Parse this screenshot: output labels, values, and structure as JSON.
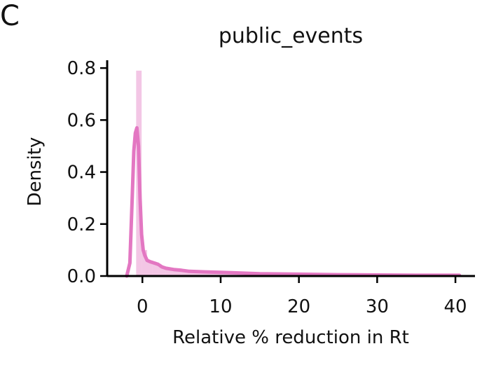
{
  "panel_label": "C",
  "chart_data": {
    "type": "area",
    "title": "public_events",
    "xlabel": "Relative % reduction in Rt",
    "ylabel": "Density",
    "xlim": [
      -4.5,
      42.5
    ],
    "ylim": [
      0.0,
      0.83
    ],
    "xticks": [
      0,
      10,
      20,
      30,
      40
    ],
    "yticks": [
      0.0,
      0.2,
      0.4,
      0.6,
      0.8
    ],
    "xtick_labels": [
      "0",
      "10",
      "20",
      "30",
      "40"
    ],
    "ytick_labels": [
      "0.0",
      "0.2",
      "0.4",
      "0.6",
      "0.8"
    ],
    "grid": false,
    "legend": "none",
    "color": "#e377c2",
    "histogram": {
      "bin_edges": [
        -0.8,
        -0.1,
        0.6,
        1.3,
        2.0,
        3.0,
        5.0,
        8.0,
        12.0,
        20.0,
        30.0,
        40.5
      ],
      "values": [
        0.79,
        0.1,
        0.06,
        0.05,
        0.035,
        0.025,
        0.016,
        0.011,
        0.007,
        0.004,
        0.003
      ]
    },
    "kde": {
      "x": [
        -2.0,
        -1.6,
        -1.3,
        -1.1,
        -0.9,
        -0.7,
        -0.5,
        -0.3,
        -0.1,
        0.1,
        0.3,
        0.6,
        1.0,
        1.5,
        2.0,
        2.5,
        3.0,
        4.0,
        5.0,
        6.0,
        8.0,
        10.0,
        12.0,
        15.0,
        20.0,
        25.0,
        30.0,
        35.0,
        40.5
      ],
      "y": [
        0.0,
        0.05,
        0.3,
        0.48,
        0.55,
        0.57,
        0.5,
        0.3,
        0.16,
        0.1,
        0.08,
        0.06,
        0.055,
        0.05,
        0.045,
        0.035,
        0.03,
        0.025,
        0.022,
        0.018,
        0.016,
        0.014,
        0.012,
        0.009,
        0.007,
        0.005,
        0.004,
        0.003,
        0.003
      ]
    }
  }
}
